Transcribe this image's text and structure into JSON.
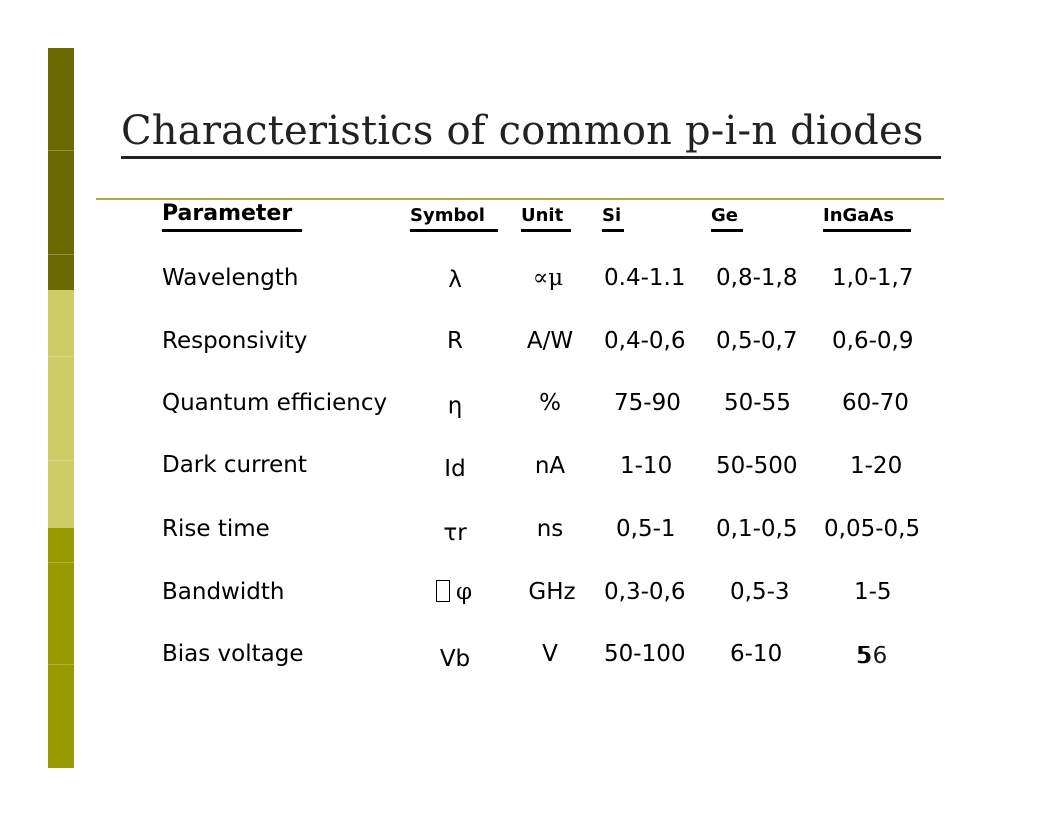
{
  "title": "Characteristics of common p-i-n diodes",
  "headers": {
    "parameter": "Parameter",
    "symbol": "Symbol",
    "unit": "Unit",
    "si": "Si",
    "ge": "Ge",
    "ingaas": "InGaAs"
  },
  "rows": [
    {
      "parameter": "Wavelength",
      "symbol": "λ",
      "unit": "∝μ",
      "si": "0.4-1.1",
      "ge": "0,8-1,8",
      "ingaas": "1,0-1,7"
    },
    {
      "parameter": "Responsivity",
      "symbol": "R",
      "unit": "A/W",
      "si": "0,4-0,6",
      "ge": "0,5-0,7",
      "ingaas": "0,6-0,9"
    },
    {
      "parameter": "Quantum efficiency",
      "symbol": "η",
      "unit": "%",
      "si": "75-90",
      "ge": "50-55",
      "ingaas": "60-70"
    },
    {
      "parameter": "Dark current",
      "symbol": "Id",
      "unit": "nA",
      "si": "1-10",
      "ge": "50-500",
      "ingaas": "1-20"
    },
    {
      "parameter": "Rise time",
      "symbol": "τr",
      "unit": "ns",
      "si": "0,5-1",
      "ge": "0,1-0,5",
      "ingaas": "0,05-0,5"
    },
    {
      "parameter": "Bandwidth",
      "symbol": "φ",
      "unit": "GHz",
      "si": "0,3-0,6",
      "ge": "0,5-3",
      "ingaas": "1-5"
    },
    {
      "parameter": "Bias voltage",
      "symbol": "Vb",
      "unit": "V",
      "si": "50-100",
      "ge": "6-10",
      "ingaas": "5"
    }
  ],
  "page_number": "56"
}
